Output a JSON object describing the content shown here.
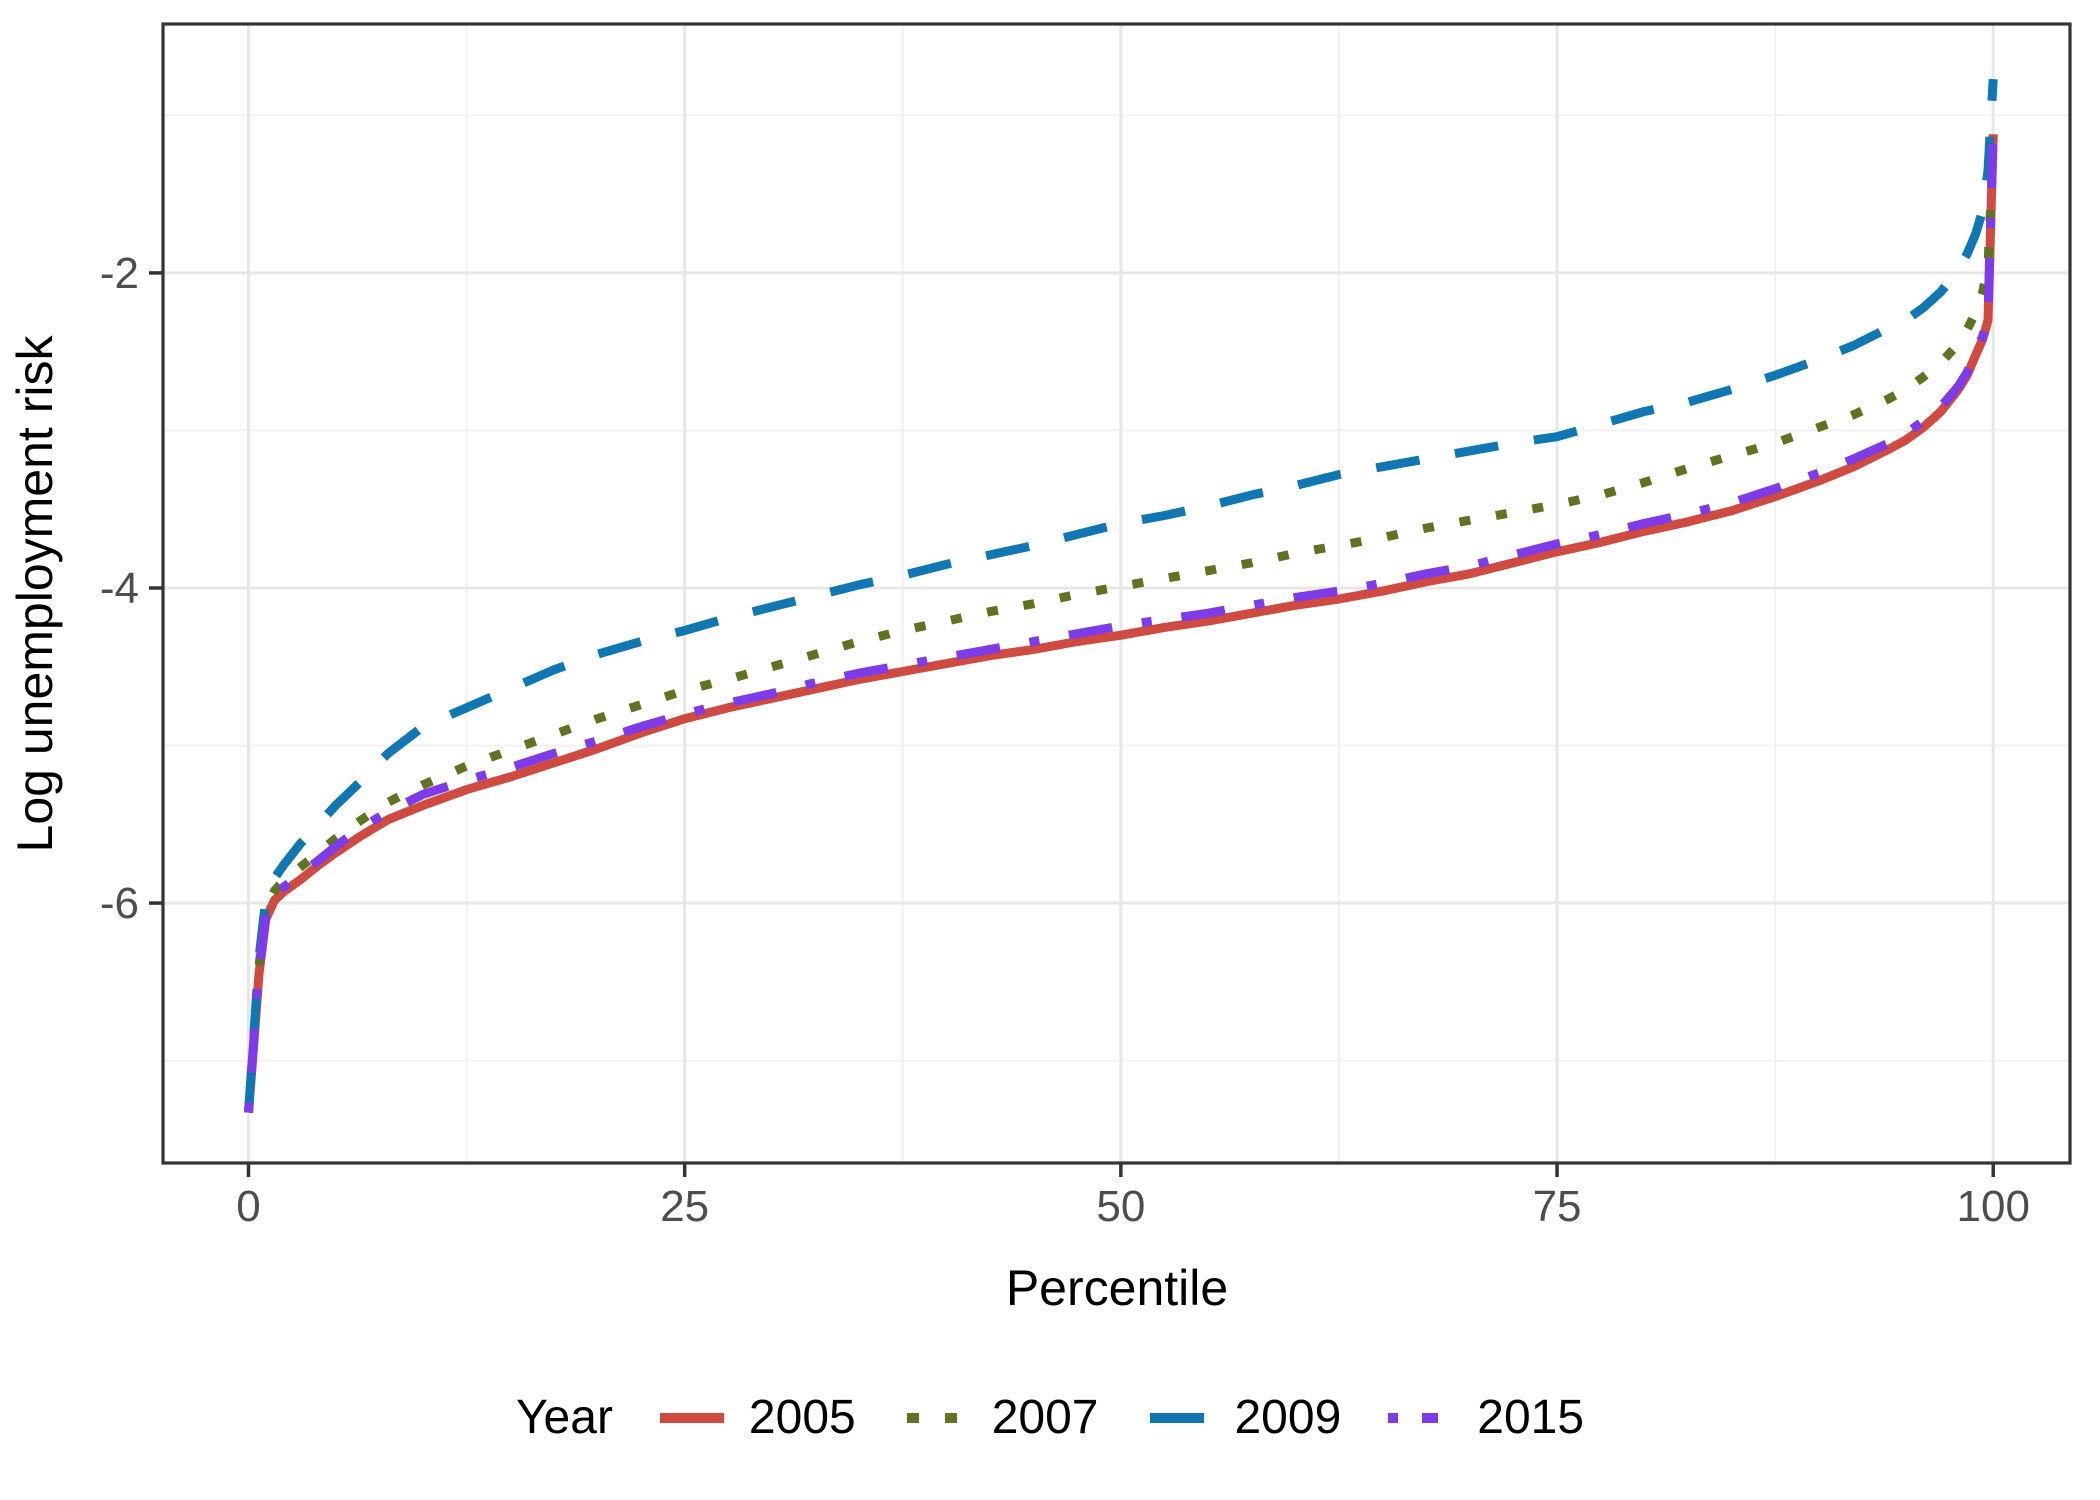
{
  "chart_data": {
    "type": "line",
    "title": "",
    "xlabel": "Percentile",
    "ylabel": "Log unemployment risk",
    "legend_title": "Year",
    "legend_position": "bottom",
    "grid": true,
    "xlim": [
      -4.9,
      104.4
    ],
    "ylim": [
      -7.65,
      -0.42
    ],
    "x_major_ticks": [
      0,
      25,
      50,
      75,
      100
    ],
    "x_tick_labels": [
      "0",
      "25",
      "50",
      "75",
      "100"
    ],
    "y_major_ticks": [
      -2,
      -4,
      -6
    ],
    "y_tick_labels": [
      "-2",
      "-4",
      "-6"
    ],
    "x_minor_ticks": [
      12.5,
      37.5,
      62.5,
      87.5
    ],
    "y_minor_ticks": [
      -1,
      -3,
      -5,
      -7
    ],
    "colors": {
      "axis_text": "#4d4d4d",
      "axis_title": "#000000",
      "panel_border": "#333333",
      "grid_major": "#e7e7e7",
      "grid_minor": "#f0f0f0",
      "background": "#ffffff"
    },
    "x": [
      0,
      0.3,
      0.6,
      1,
      1.5,
      2,
      3,
      4,
      5,
      6.5,
      8,
      10,
      12.5,
      15,
      17.5,
      20,
      22.5,
      25,
      27.5,
      30,
      32.5,
      35,
      37.5,
      40,
      42.5,
      45,
      47.5,
      50,
      52.5,
      55,
      57.5,
      60,
      62.5,
      65,
      67.5,
      70,
      72.5,
      75,
      77.5,
      80,
      82.5,
      85,
      87.5,
      90,
      92,
      94,
      95,
      96,
      97,
      98,
      98.5,
      99,
      99.4,
      99.7,
      100
    ],
    "series": [
      {
        "name": "2005",
        "color": "#cf4a40",
        "linetype": "solid",
        "values": [
          -7.33,
          -6.9,
          -6.45,
          -6.1,
          -5.98,
          -5.93,
          -5.85,
          -5.76,
          -5.68,
          -5.57,
          -5.47,
          -5.38,
          -5.28,
          -5.2,
          -5.11,
          -5.02,
          -4.92,
          -4.83,
          -4.76,
          -4.7,
          -4.64,
          -4.58,
          -4.53,
          -4.48,
          -4.43,
          -4.39,
          -4.34,
          -4.3,
          -4.25,
          -4.21,
          -4.16,
          -4.11,
          -4.07,
          -4.02,
          -3.96,
          -3.91,
          -3.84,
          -3.77,
          -3.71,
          -3.64,
          -3.58,
          -3.51,
          -3.42,
          -3.32,
          -3.23,
          -3.12,
          -3.06,
          -2.98,
          -2.88,
          -2.74,
          -2.65,
          -2.52,
          -2.42,
          -2.3,
          -1.12
        ]
      },
      {
        "name": "2007",
        "color": "#5f7422",
        "linetype": "dotted",
        "values": [
          -7.33,
          -6.87,
          -6.4,
          -6.02,
          -5.92,
          -5.86,
          -5.77,
          -5.68,
          -5.59,
          -5.47,
          -5.36,
          -5.25,
          -5.13,
          -5.03,
          -4.93,
          -4.83,
          -4.74,
          -4.65,
          -4.58,
          -4.5,
          -4.42,
          -4.34,
          -4.27,
          -4.21,
          -4.15,
          -4.1,
          -4.04,
          -3.99,
          -3.94,
          -3.89,
          -3.84,
          -3.78,
          -3.73,
          -3.68,
          -3.62,
          -3.57,
          -3.52,
          -3.47,
          -3.41,
          -3.33,
          -3.24,
          -3.16,
          -3.08,
          -2.98,
          -2.9,
          -2.8,
          -2.74,
          -2.66,
          -2.57,
          -2.45,
          -2.36,
          -2.25,
          -2.12,
          -1.95,
          -1.22
        ]
      },
      {
        "name": "2009",
        "color": "#1177b3",
        "linetype": "dashed",
        "values": [
          -7.33,
          -6.85,
          -6.35,
          -5.97,
          -5.84,
          -5.76,
          -5.62,
          -5.5,
          -5.38,
          -5.22,
          -5.05,
          -4.88,
          -4.76,
          -4.64,
          -4.52,
          -4.42,
          -4.34,
          -4.27,
          -4.19,
          -4.12,
          -4.05,
          -3.98,
          -3.92,
          -3.85,
          -3.79,
          -3.73,
          -3.66,
          -3.59,
          -3.54,
          -3.48,
          -3.41,
          -3.35,
          -3.28,
          -3.23,
          -3.18,
          -3.13,
          -3.08,
          -3.04,
          -2.96,
          -2.88,
          -2.82,
          -2.74,
          -2.65,
          -2.55,
          -2.46,
          -2.35,
          -2.3,
          -2.22,
          -2.12,
          -1.98,
          -1.88,
          -1.75,
          -1.6,
          -1.35,
          -0.77
        ]
      },
      {
        "name": "2015",
        "color": "#7d3ce8",
        "linetype": "dotdash",
        "values": [
          -7.33,
          -6.88,
          -6.43,
          -6.07,
          -5.96,
          -5.9,
          -5.82,
          -5.73,
          -5.64,
          -5.52,
          -5.42,
          -5.31,
          -5.22,
          -5.14,
          -5.05,
          -4.97,
          -4.88,
          -4.8,
          -4.73,
          -4.67,
          -4.6,
          -4.54,
          -4.49,
          -4.44,
          -4.39,
          -4.34,
          -4.29,
          -4.24,
          -4.2,
          -4.16,
          -4.11,
          -4.06,
          -4.02,
          -3.97,
          -3.91,
          -3.86,
          -3.79,
          -3.72,
          -3.66,
          -3.59,
          -3.53,
          -3.46,
          -3.37,
          -3.27,
          -3.18,
          -3.08,
          -3.02,
          -2.94,
          -2.85,
          -2.72,
          -2.63,
          -2.5,
          -2.4,
          -2.28,
          -1.1
        ]
      }
    ]
  }
}
